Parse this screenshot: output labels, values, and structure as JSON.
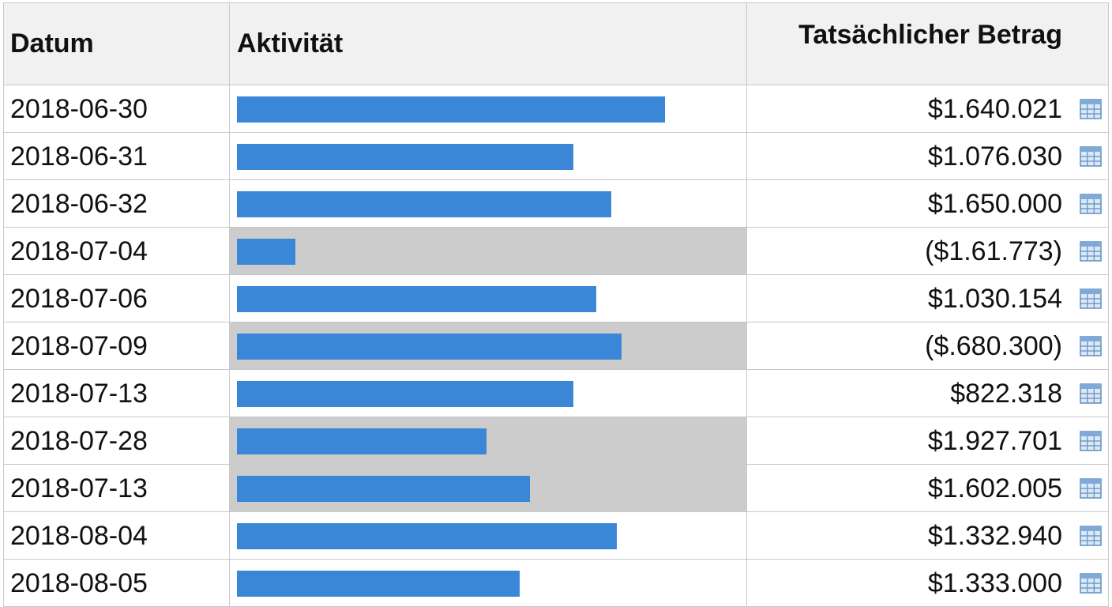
{
  "table": {
    "columns": {
      "date": "Datum",
      "activity": "Aktivität",
      "amount": "Tatsächlicher Betrag"
    },
    "bar_color": "#3a87d8",
    "highlight_color": "#cccccc",
    "rows": [
      {
        "date": "2018-06-30",
        "activity_fraction": 0.84,
        "amount": "$1.640.021",
        "highlighted": false
      },
      {
        "date": "2018-06-31",
        "activity_fraction": 0.66,
        "amount": "$1.076.030",
        "highlighted": false
      },
      {
        "date": "2018-06-32",
        "activity_fraction": 0.735,
        "amount": "$1.650.000",
        "highlighted": false
      },
      {
        "date": "2018-07-04",
        "activity_fraction": 0.115,
        "amount": "($1.61.773)",
        "highlighted": true
      },
      {
        "date": "2018-07-06",
        "activity_fraction": 0.705,
        "amount": "$1.030.154",
        "highlighted": false
      },
      {
        "date": "2018-07-09",
        "activity_fraction": 0.755,
        "amount": "($.680.300)",
        "highlighted": true
      },
      {
        "date": "2018-07-13",
        "activity_fraction": 0.66,
        "amount": "$822.318",
        "highlighted": false
      },
      {
        "date": "2018-07-28",
        "activity_fraction": 0.49,
        "amount": "$1.927.701",
        "highlighted": true
      },
      {
        "date": "2018-07-13",
        "activity_fraction": 0.575,
        "amount": "$1.602.005",
        "highlighted": true
      },
      {
        "date": "2018-08-04",
        "activity_fraction": 0.745,
        "amount": "$1.332.940",
        "highlighted": false
      },
      {
        "date": "2018-08-05",
        "activity_fraction": 0.555,
        "amount": "$1.333.000",
        "highlighted": false
      }
    ],
    "row_icon": "table-grid-icon"
  }
}
